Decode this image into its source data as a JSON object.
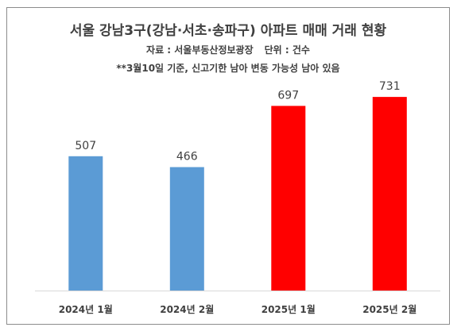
{
  "header": {
    "title": "서울 강남3구(강남·서초·송파구) 아파트 매매 거래 현황",
    "source": "자료 : 서울부동산정보광장",
    "unit": "단위 : 건수",
    "note": "**3월10일 기준, 신고기한 남아 변동 가능성 남아 있음"
  },
  "chart_data": {
    "type": "bar",
    "title": "서울 강남3구(강남·서초·송파구) 아파트 매매 거래 현황",
    "categories": [
      "2024년 1월",
      "2024년 2월",
      "2025년 1월",
      "2025년 2월"
    ],
    "values": [
      507,
      466,
      697,
      731
    ],
    "bar_colors": [
      "#5b9bd5",
      "#5b9bd5",
      "#ff0000",
      "#ff0000"
    ],
    "ylim": [
      0,
      800
    ],
    "grid": false,
    "data_labels": true
  },
  "colors": {
    "text": "#404040",
    "axis": "#d9d9d9",
    "border": "#8c8c8c"
  }
}
